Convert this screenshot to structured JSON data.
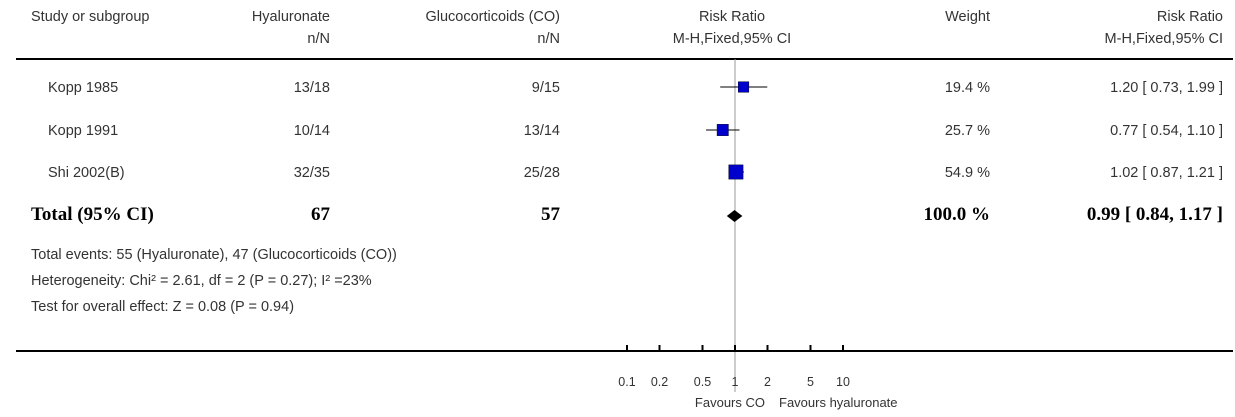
{
  "header": {
    "study": "Study or subgroup",
    "group1": "Hyaluronate",
    "group1_sub": "n/N",
    "group2": "Glucocorticoids (CO)",
    "group2_sub": "n/N",
    "rr": "Risk Ratio",
    "rr_sub": "M-H,Fixed,95% CI",
    "weight": "Weight",
    "rr2": "Risk Ratio",
    "rr2_sub": "M-H,Fixed,95% CI"
  },
  "studies": [
    {
      "name": "Kopp 1985",
      "g1": "13/18",
      "g2": "9/15",
      "weight": "19.4 %",
      "ci_text": "1.20 [ 0.73, 1.99 ]"
    },
    {
      "name": "Kopp 1991",
      "g1": "10/14",
      "g2": "13/14",
      "weight": "25.7 %",
      "ci_text": "0.77 [ 0.54, 1.10 ]"
    },
    {
      "name": "Shi 2002(B)",
      "g1": "32/35",
      "g2": "25/28",
      "weight": "54.9 %",
      "ci_text": "1.02 [ 0.87, 1.21 ]"
    }
  ],
  "total": {
    "label": "Total (95% CI)",
    "g1": "67",
    "g2": "57",
    "weight": "100.0 %",
    "ci_text": "0.99 [ 0.84, 1.17 ]"
  },
  "footnotes": {
    "events": "Total events: 55 (Hyaluronate), 47 (Glucocorticoids (CO))",
    "heterogeneity": "Heterogeneity: Chi² = 2.61, df = 2 (P = 0.27); I² =23%",
    "overall": "Test for overall effect: Z = 0.08 (P = 0.94)"
  },
  "axis": {
    "favours_left": "Favours CO",
    "favours_right": "Favours hyaluronate"
  },
  "colors": {
    "marker": "#0000cc",
    "line": "#000000",
    "ref_line": "#999999"
  },
  "chart_data": {
    "type": "forest",
    "scale": "log",
    "xlim": [
      0.1,
      10
    ],
    "ticks": [
      {
        "value": 0.1,
        "label": "0.1"
      },
      {
        "value": 0.2,
        "label": "0.2"
      },
      {
        "value": 0.5,
        "label": "0.5"
      },
      {
        "value": 1,
        "label": "1"
      },
      {
        "value": 2,
        "label": "2"
      },
      {
        "value": 5,
        "label": "5"
      },
      {
        "value": 10,
        "label": "10"
      }
    ],
    "points": [
      {
        "study": "Kopp 1985",
        "rr": 1.2,
        "low": 0.73,
        "high": 1.99,
        "weight": 19.4
      },
      {
        "study": "Kopp 1991",
        "rr": 0.77,
        "low": 0.54,
        "high": 1.1,
        "weight": 25.7
      },
      {
        "study": "Shi 2002(B)",
        "rr": 1.02,
        "low": 0.87,
        "high": 1.21,
        "weight": 54.9
      }
    ],
    "pooled": {
      "rr": 0.99,
      "low": 0.84,
      "high": 1.17
    }
  }
}
